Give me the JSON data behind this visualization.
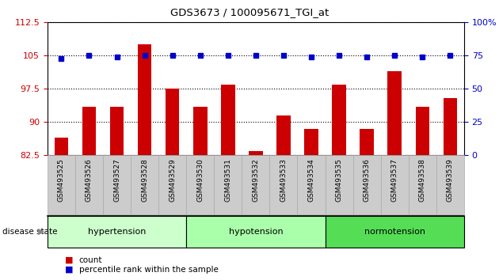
{
  "title": "GDS3673 / 100095671_TGI_at",
  "samples": [
    "GSM493525",
    "GSM493526",
    "GSM493527",
    "GSM493528",
    "GSM493529",
    "GSM493530",
    "GSM493531",
    "GSM493532",
    "GSM493533",
    "GSM493534",
    "GSM493535",
    "GSM493536",
    "GSM493537",
    "GSM493538",
    "GSM493539"
  ],
  "bar_values": [
    86.5,
    93.5,
    93.5,
    107.5,
    97.5,
    93.5,
    98.5,
    83.5,
    91.5,
    88.5,
    98.5,
    88.5,
    101.5,
    93.5,
    95.5
  ],
  "dot_right_values": [
    73,
    75,
    74,
    75,
    75,
    75,
    75,
    75,
    75,
    74,
    75,
    74,
    75,
    74,
    75
  ],
  "ylim_left": [
    82.5,
    112.5
  ],
  "ylim_right": [
    0,
    100
  ],
  "yticks_left": [
    82.5,
    90.0,
    97.5,
    105.0,
    112.5
  ],
  "yticks_right": [
    0,
    25,
    50,
    75,
    100
  ],
  "bar_color": "#cc0000",
  "dot_color": "#0000cc",
  "group_boundaries": [
    {
      "start": 0,
      "end": 5,
      "color": "#ccffcc",
      "label": "hypertension"
    },
    {
      "start": 5,
      "end": 10,
      "color": "#aaffaa",
      "label": "hypotension"
    },
    {
      "start": 10,
      "end": 15,
      "color": "#55dd55",
      "label": "normotension"
    }
  ],
  "tick_bg_color": "#cccccc",
  "tick_border_color": "#aaaaaa",
  "disease_state_label": "disease state",
  "legend_count_label": "count",
  "legend_pct_label": "percentile rank within the sample"
}
